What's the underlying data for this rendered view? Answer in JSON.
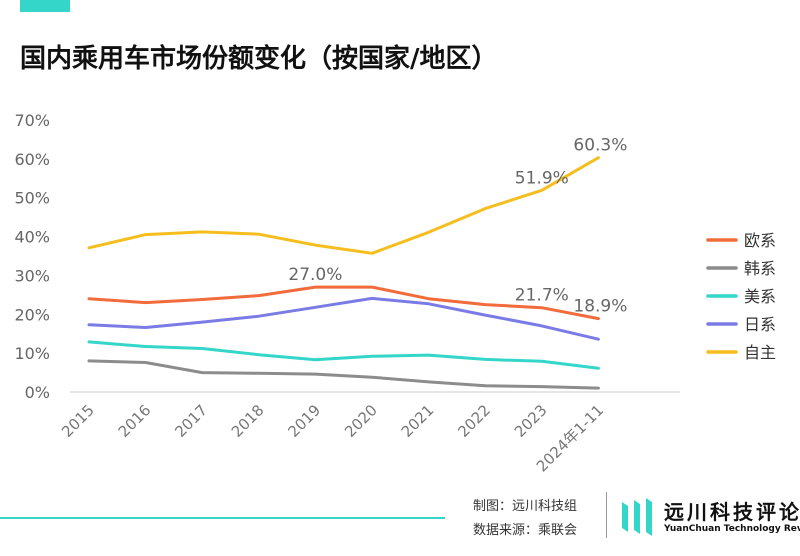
{
  "header": {
    "title": "国内乘用车市场份额变化（按国家/地区）"
  },
  "footer": {
    "credit_line1": "制图：远川科技组",
    "credit_line2": "数据来源：乘联会",
    "brand_cn": "远川科技评论",
    "brand_en": "YuanChuan Technology Review"
  },
  "colors": {
    "accent": "#33d6c8",
    "eu": "#f26b3a",
    "kr": "#8c8c8c",
    "us": "#33d6c8",
    "jp": "#7b7be6",
    "cn": "#f5be1e"
  },
  "chart_data": {
    "type": "line",
    "title": "国内乘用车市场份额变化（按国家/地区）",
    "xlabel": "",
    "ylabel": "",
    "categories": [
      "2015",
      "2016",
      "2017",
      "2018",
      "2019",
      "2020",
      "2021",
      "2022",
      "2023",
      "2024年1-11"
    ],
    "yticks": [
      "0%",
      "10%",
      "20%",
      "30%",
      "40%",
      "50%",
      "60%",
      "70%"
    ],
    "ylim": [
      0,
      70
    ],
    "legend_position": "right",
    "series": [
      {
        "name": "欧系",
        "color": "#f26b3a",
        "values": [
          24.0,
          23.0,
          23.8,
          24.8,
          27.0,
          27.0,
          24.0,
          22.5,
          21.7,
          18.9
        ]
      },
      {
        "name": "韩系",
        "color": "#8c8c8c",
        "values": [
          8.0,
          7.6,
          5.0,
          4.8,
          4.6,
          3.8,
          2.6,
          1.6,
          1.4,
          1.0
        ]
      },
      {
        "name": "美系",
        "color": "#33d6c8",
        "values": [
          12.9,
          11.7,
          11.2,
          9.6,
          8.3,
          9.2,
          9.5,
          8.4,
          7.9,
          6.1
        ]
      },
      {
        "name": "日系",
        "color": "#7b7be6",
        "values": [
          17.3,
          16.6,
          18.0,
          19.5,
          21.8,
          24.1,
          22.7,
          19.8,
          17.0,
          13.6
        ]
      },
      {
        "name": "自主",
        "color": "#f5be1e",
        "values": [
          37.1,
          40.5,
          41.2,
          40.6,
          37.8,
          35.7,
          41.1,
          47.2,
          51.9,
          60.3
        ]
      }
    ],
    "annotations": [
      {
        "series": "欧系",
        "index": 4,
        "label": "27.0%"
      },
      {
        "series": "欧系",
        "index": 8,
        "label": "21.7%"
      },
      {
        "series": "欧系",
        "index": 9,
        "label": "18.9%"
      },
      {
        "series": "自主",
        "index": 8,
        "label": "51.9%"
      },
      {
        "series": "自主",
        "index": 9,
        "label": "60.3%"
      }
    ]
  }
}
